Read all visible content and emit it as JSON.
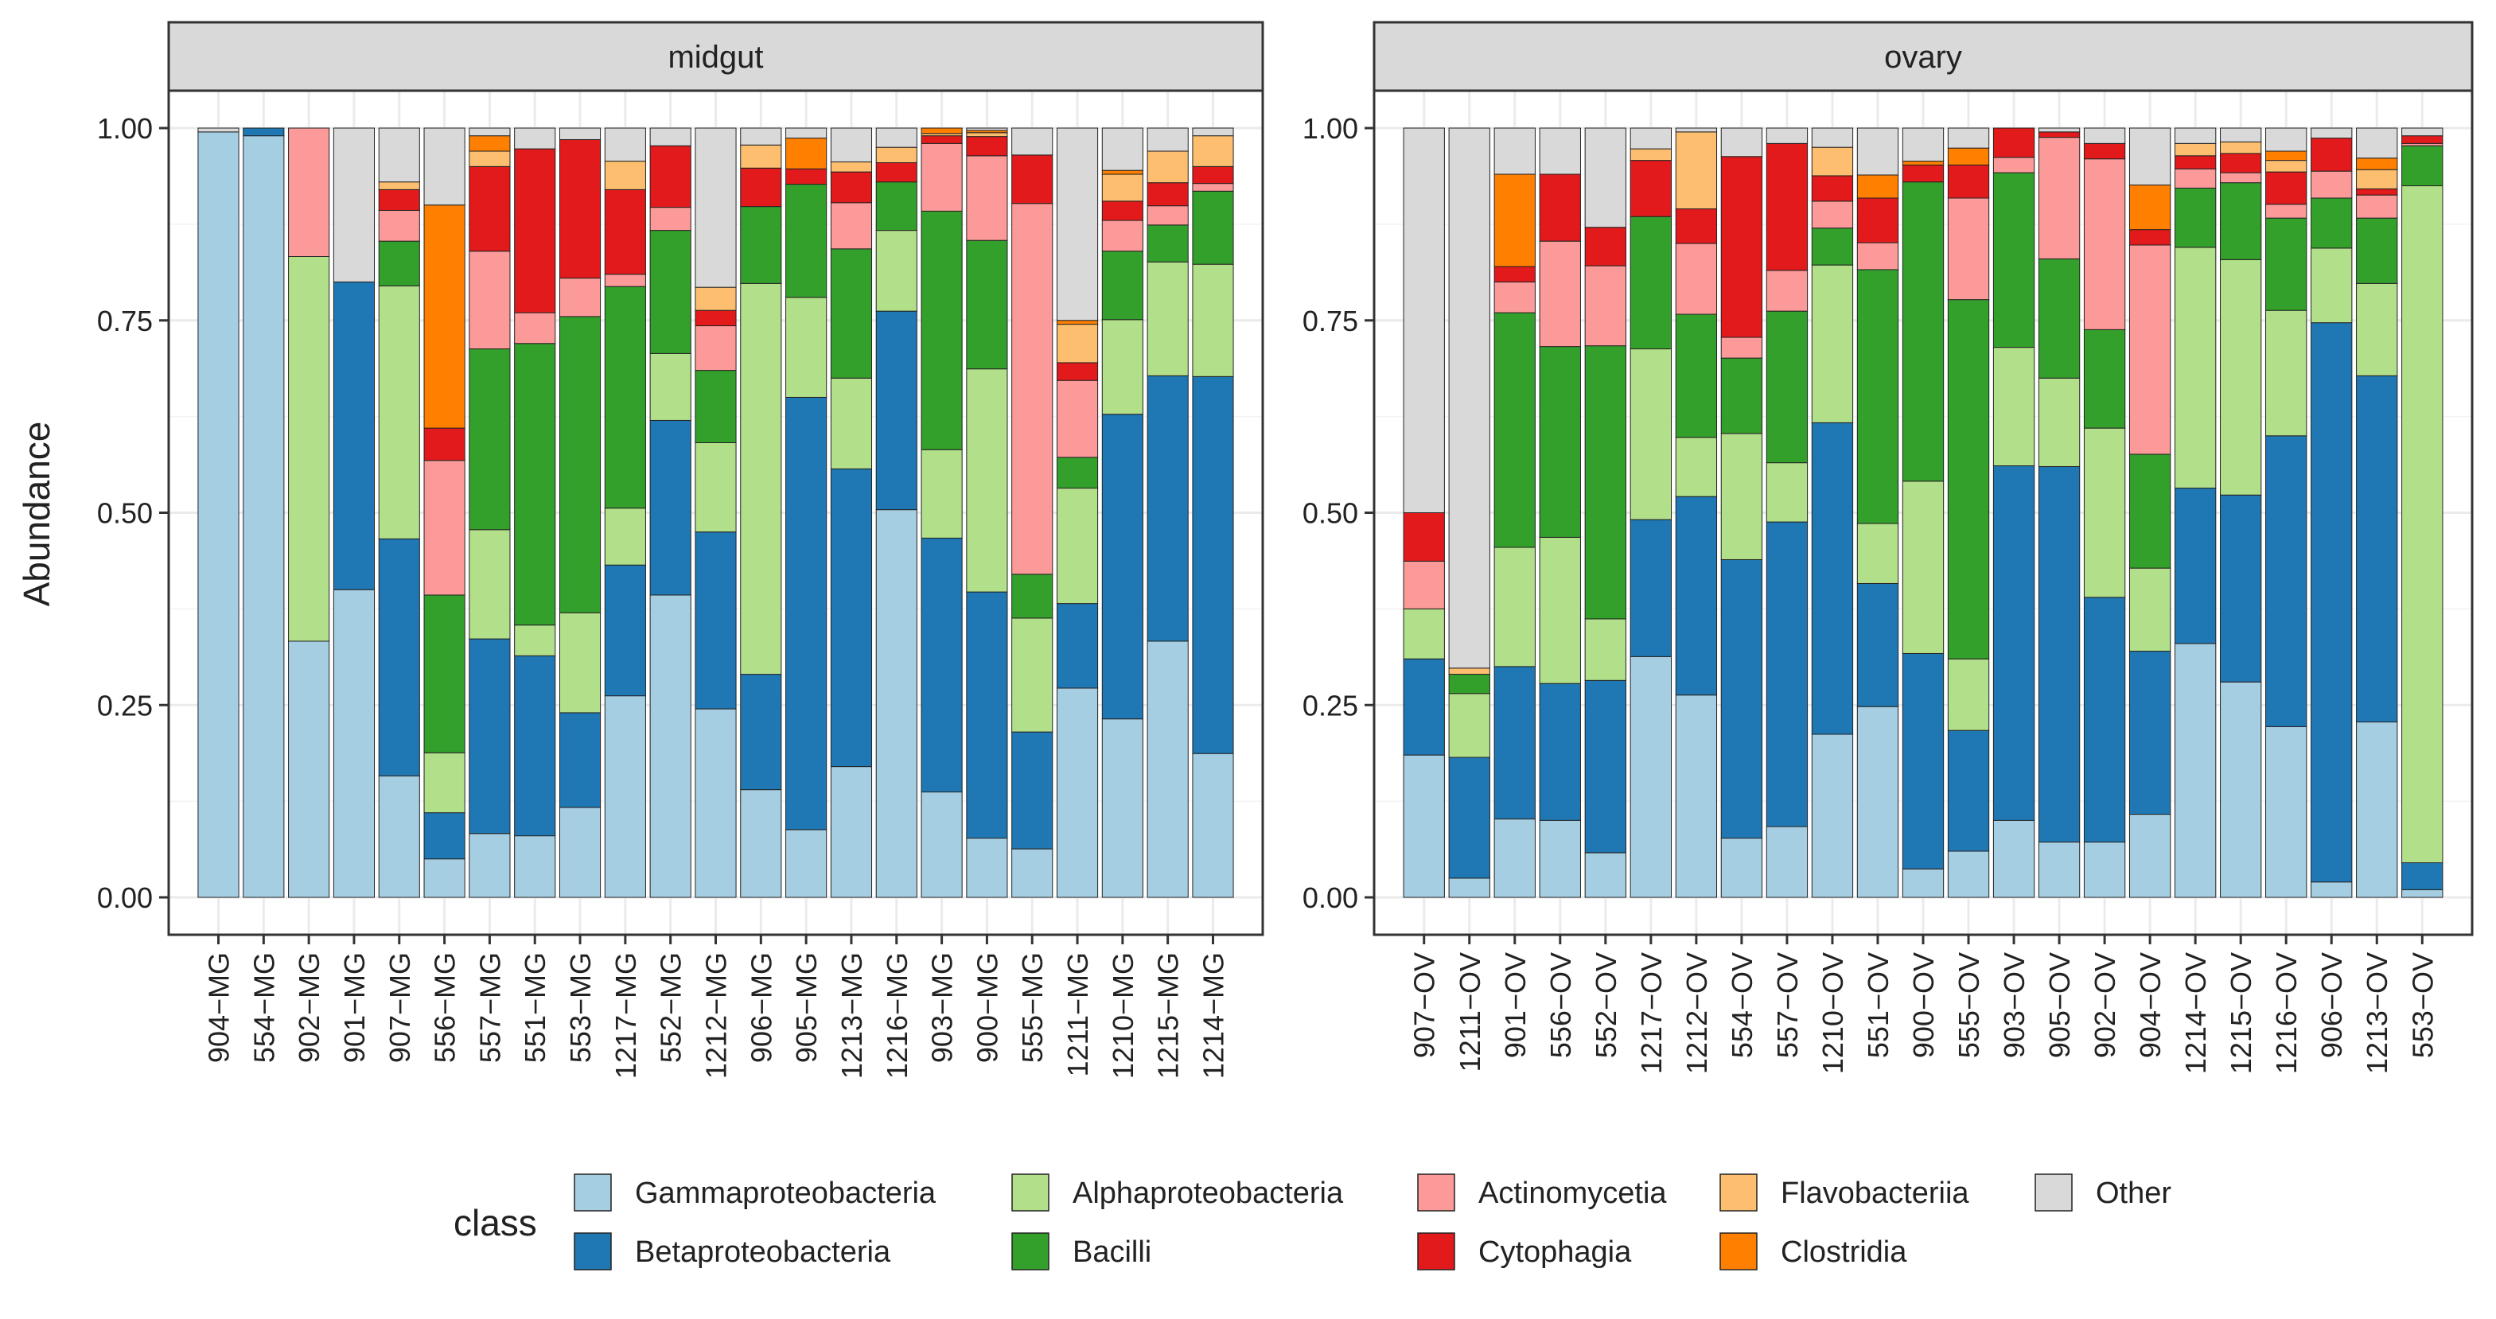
{
  "chart_data": {
    "type": "bar",
    "stacked": true,
    "ylabel": "Abundance",
    "ylim": [
      0,
      1.05
    ],
    "y_ticks": [
      "0.00",
      "0.25",
      "0.50",
      "0.75",
      "1.00"
    ],
    "grid": true,
    "legend_title": "class",
    "legend_position": "bottom",
    "classes": [
      {
        "name": "Gammaproteobacteria",
        "color": "#a6cee3"
      },
      {
        "name": "Betaproteobacteria",
        "color": "#1f78b4"
      },
      {
        "name": "Alphaproteobacteria",
        "color": "#b2df8a"
      },
      {
        "name": "Bacilli",
        "color": "#33a02c"
      },
      {
        "name": "Actinomycetia",
        "color": "#fb9a99"
      },
      {
        "name": "Cytophagia",
        "color": "#e31a1c"
      },
      {
        "name": "Flavobacteriia",
        "color": "#fdbf6f"
      },
      {
        "name": "Clostridia",
        "color": "#ff7f00"
      },
      {
        "name": "Other",
        "color": "#d9d9d9"
      }
    ],
    "legend_layout": [
      [
        "Gammaproteobacteria",
        "Alphaproteobacteria",
        "Actinomycetia",
        "Flavobacteriia",
        "Other"
      ],
      [
        "Betaproteobacteria",
        "Bacilli",
        "Cytophagia",
        "Clostridia"
      ]
    ],
    "facets": [
      {
        "name": "midgut",
        "bars": [
          {
            "sample": "904−MG",
            "values": [
              0.995,
              0,
              0,
              0,
              0,
              0,
              0,
              0,
              0.005
            ]
          },
          {
            "sample": "554−MG",
            "values": [
              0.99,
              0.01,
              0,
              0,
              0,
              0,
              0,
              0,
              0
            ]
          },
          {
            "sample": "902−MG",
            "values": [
              0.333,
              0,
              0.5,
              0,
              0.167,
              0,
              0,
              0,
              0
            ]
          },
          {
            "sample": "901−MG",
            "values": [
              0.4,
              0.4,
              0,
              0,
              0,
              0,
              0,
              0,
              0.2
            ]
          },
          {
            "sample": "907−MG",
            "values": [
              0.158,
              0.308,
              0.329,
              0.058,
              0.04,
              0.027,
              0.01,
              0,
              0.07
            ]
          },
          {
            "sample": "556−MG",
            "values": [
              0.05,
              0.06,
              0.078,
              0.205,
              0.175,
              0.042,
              0,
              0.29,
              0.1
            ]
          },
          {
            "sample": "557−MG",
            "values": [
              0.083,
              0.253,
              0.142,
              0.235,
              0.127,
              0.11,
              0.02,
              0.02,
              0.01
            ]
          },
          {
            "sample": "551−MG",
            "values": [
              0.08,
              0.234,
              0.04,
              0.366,
              0.04,
              0.213,
              0,
              0,
              0.027
            ]
          },
          {
            "sample": "553−MG",
            "values": [
              0.117,
              0.123,
              0.13,
              0.385,
              0.05,
              0.18,
              0,
              0,
              0.015
            ]
          },
          {
            "sample": "1217−MG",
            "values": [
              0.262,
              0.17,
              0.074,
              0.288,
              0.016,
              0.11,
              0.037,
              0,
              0.043
            ]
          },
          {
            "sample": "552−MG",
            "values": [
              0.393,
              0.227,
              0.087,
              0.16,
              0.03,
              0.08,
              0,
              0,
              0.023
            ]
          },
          {
            "sample": "1212−MG",
            "values": [
              0.245,
              0.23,
              0.116,
              0.094,
              0.058,
              0.02,
              0.03,
              0,
              0.207
            ]
          },
          {
            "sample": "906−MG",
            "values": [
              0.14,
              0.15,
              0.508,
              0.1,
              0,
              0.05,
              0.03,
              0,
              0.022
            ]
          },
          {
            "sample": "905−MG",
            "values": [
              0.088,
              0.562,
              0.13,
              0.147,
              0,
              0.02,
              0,
              0.04,
              0.013
            ]
          },
          {
            "sample": "1213−MG",
            "values": [
              0.17,
              0.387,
              0.118,
              0.168,
              0.06,
              0.04,
              0.013,
              0,
              0.044
            ]
          },
          {
            "sample": "1216−MG",
            "values": [
              0.504,
              0.258,
              0.105,
              0.063,
              0,
              0.025,
              0.02,
              0,
              0.025
            ]
          },
          {
            "sample": "903−MG",
            "values": [
              0.137,
              0.33,
              0.115,
              0.31,
              0.088,
              0.01,
              0.003,
              0.007,
              0
            ]
          },
          {
            "sample": "900−MG",
            "values": [
              0.077,
              0.32,
              0.29,
              0.167,
              0.11,
              0.025,
              0.005,
              0.003,
              0.003
            ]
          },
          {
            "sample": "555−MG",
            "values": [
              0.063,
              0.152,
              0.148,
              0.057,
              0.482,
              0.063,
              0,
              0,
              0.035
            ]
          },
          {
            "sample": "1211−MG",
            "values": [
              0.272,
              0.11,
              0.15,
              0.04,
              0.1,
              0.023,
              0.05,
              0.005,
              0.25
            ]
          },
          {
            "sample": "1210−MG",
            "values": [
              0.232,
              0.396,
              0.123,
              0.089,
              0.04,
              0.025,
              0.035,
              0.005,
              0.055
            ]
          },
          {
            "sample": "1215−MG",
            "values": [
              0.333,
              0.345,
              0.148,
              0.048,
              0.025,
              0.03,
              0.041,
              0,
              0.03
            ]
          },
          {
            "sample": "1214−MG",
            "values": [
              0.187,
              0.49,
              0.146,
              0.095,
              0.01,
              0.022,
              0.04,
              0,
              0.01
            ]
          }
        ]
      },
      {
        "name": "ovary",
        "bars": [
          {
            "sample": "907−OV",
            "values": [
              0.185,
              0.125,
              0.065,
              0,
              0.062,
              0.063,
              0,
              0,
              0.5
            ]
          },
          {
            "sample": "1211−OV",
            "values": [
              0.025,
              0.157,
              0.083,
              0.025,
              0,
              0,
              0.008,
              0,
              0.702
            ]
          },
          {
            "sample": "901−OV",
            "values": [
              0.102,
              0.198,
              0.155,
              0.305,
              0.04,
              0.02,
              0,
              0.12,
              0.06
            ]
          },
          {
            "sample": "556−OV",
            "values": [
              0.1,
              0.178,
              0.19,
              0.248,
              0.137,
              0.087,
              0,
              0,
              0.06
            ]
          },
          {
            "sample": "552−OV",
            "values": [
              0.058,
              0.224,
              0.08,
              0.355,
              0.104,
              0.05,
              0,
              0,
              0.129
            ]
          },
          {
            "sample": "1217−OV",
            "values": [
              0.313,
              0.178,
              0.222,
              0.172,
              0,
              0.073,
              0.015,
              0,
              0.027
            ]
          },
          {
            "sample": "1212−OV",
            "values": [
              0.263,
              0.258,
              0.077,
              0.16,
              0.092,
              0.045,
              0.1,
              0,
              0.005
            ]
          },
          {
            "sample": "554−OV",
            "values": [
              0.077,
              0.362,
              0.164,
              0.098,
              0.027,
              0.235,
              0,
              0,
              0.037
            ]
          },
          {
            "sample": "557−OV",
            "values": [
              0.092,
              0.396,
              0.077,
              0.197,
              0.053,
              0.165,
              0,
              0,
              0.02
            ]
          },
          {
            "sample": "1210−OV",
            "values": [
              0.212,
              0.405,
              0.205,
              0.048,
              0.035,
              0.033,
              0.037,
              0,
              0.025
            ]
          },
          {
            "sample": "551−OV",
            "values": [
              0.248,
              0.16,
              0.078,
              0.33,
              0.035,
              0.058,
              0,
              0.03,
              0.061
            ]
          },
          {
            "sample": "900−OV",
            "values": [
              0.037,
              0.28,
              0.224,
              0.389,
              0,
              0.022,
              0,
              0.005,
              0.043
            ]
          },
          {
            "sample": "555−OV",
            "values": [
              0.06,
              0.157,
              0.093,
              0.467,
              0.132,
              0.043,
              0,
              0.022,
              0.026
            ]
          },
          {
            "sample": "903−OV",
            "values": [
              0.1,
              0.461,
              0.154,
              0.227,
              0.02,
              0.038,
              0,
              0,
              0
            ]
          },
          {
            "sample": "905−OV",
            "values": [
              0.072,
              0.488,
              0.115,
              0.155,
              0.158,
              0.007,
              0,
              0,
              0.005
            ]
          },
          {
            "sample": "902−OV",
            "values": [
              0.072,
              0.318,
              0.22,
              0.128,
              0.222,
              0.02,
              0,
              0,
              0.02
            ]
          },
          {
            "sample": "904−OV",
            "values": [
              0.108,
              0.212,
              0.108,
              0.148,
              0.272,
              0.02,
              0,
              0.058,
              0.074
            ]
          },
          {
            "sample": "1214−OV",
            "values": [
              0.33,
              0.202,
              0.313,
              0.077,
              0.025,
              0.017,
              0.016,
              0,
              0.02
            ]
          },
          {
            "sample": "1215−OV",
            "values": [
              0.28,
              0.243,
              0.306,
              0.1,
              0.013,
              0.025,
              0.015,
              0,
              0.018
            ]
          },
          {
            "sample": "1216−OV",
            "values": [
              0.222,
              0.378,
              0.163,
              0.12,
              0.018,
              0.042,
              0.015,
              0.012,
              0.03
            ]
          },
          {
            "sample": "906−OV",
            "values": [
              0.02,
              0.727,
              0.097,
              0.065,
              0.035,
              0.043,
              0,
              0,
              0.013
            ]
          },
          {
            "sample": "1213−OV",
            "values": [
              0.228,
              0.45,
              0.12,
              0.085,
              0.03,
              0.008,
              0.025,
              0.015,
              0.039
            ]
          },
          {
            "sample": "553−OV",
            "values": [
              0.01,
              0.035,
              0.88,
              0.052,
              0.003,
              0.01,
              0,
              0,
              0.01
            ]
          }
        ]
      }
    ]
  }
}
